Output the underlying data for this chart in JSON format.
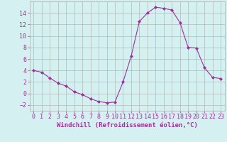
{
  "x": [
    0,
    1,
    2,
    3,
    4,
    5,
    6,
    7,
    8,
    9,
    10,
    11,
    12,
    13,
    14,
    15,
    16,
    17,
    18,
    19,
    20,
    21,
    22,
    23
  ],
  "y": [
    4.0,
    3.7,
    2.7,
    1.8,
    1.3,
    0.3,
    -0.2,
    -0.9,
    -1.4,
    -1.6,
    -1.5,
    2.0,
    6.5,
    12.5,
    14.0,
    15.0,
    14.8,
    14.5,
    12.3,
    8.0,
    7.9,
    4.5,
    2.8,
    2.6
  ],
  "line_color": "#993399",
  "marker": "D",
  "marker_size": 2.0,
  "background_color": "#d4f0f0",
  "grid_color": "#aaaaaa",
  "xlabel": "Windchill (Refroidissement éolien,°C)",
  "xlabel_fontsize": 6.5,
  "tick_color": "#993399",
  "tick_fontsize": 6,
  "xlim": [
    -0.5,
    23.5
  ],
  "ylim": [
    -3,
    16
  ],
  "yticks": [
    -2,
    0,
    2,
    4,
    6,
    8,
    10,
    12,
    14
  ],
  "xticks": [
    0,
    1,
    2,
    3,
    4,
    5,
    6,
    7,
    8,
    9,
    10,
    11,
    12,
    13,
    14,
    15,
    16,
    17,
    18,
    19,
    20,
    21,
    22,
    23
  ]
}
